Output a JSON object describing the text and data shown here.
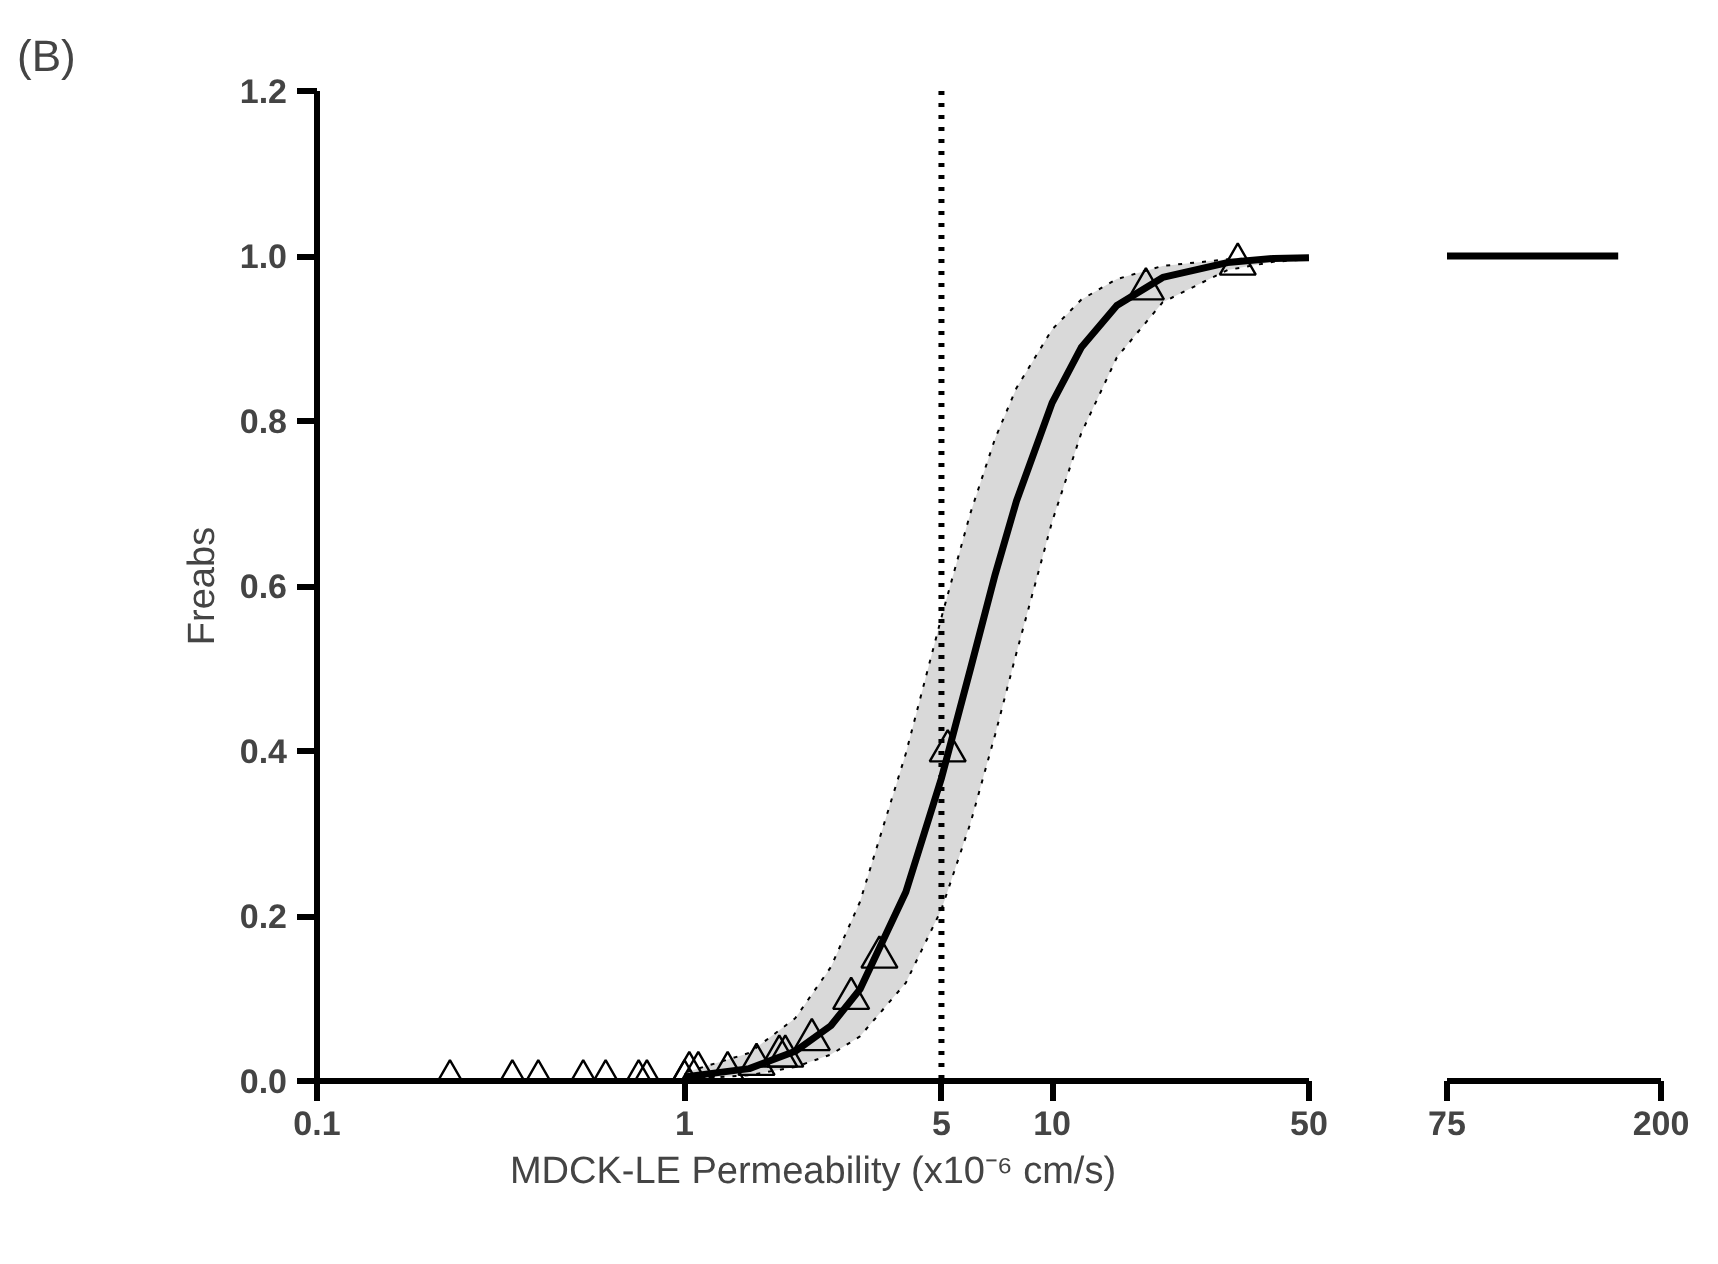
{
  "chart_data": [
    {
      "type": "scatter",
      "title": "(B)",
      "xlabel": "MDCK-LE Permeability (x10⁻⁶ cm/s)",
      "ylabel": "Freabs",
      "log": "x",
      "xlim": [
        0.1,
        50
      ],
      "xticks": [
        0.1,
        1,
        5,
        10,
        50
      ],
      "ylim": [
        0,
        1.2
      ],
      "yticks": [
        {
          "value": 0,
          "label": "0.0"
        },
        {
          "value": 0.2,
          "label": "0.2"
        },
        {
          "value": 0.4,
          "label": "0.4"
        },
        {
          "value": 0.6,
          "label": "0.6"
        },
        {
          "value": 0.8,
          "label": "0.8"
        },
        {
          "value": 1.0,
          "label": "1.0"
        },
        {
          "value": 1.2,
          "label": "1.2"
        }
      ],
      "grid": false,
      "ref_lines": [
        {
          "axis": "x",
          "value": 5,
          "color": "#000000",
          "line_style": "dotted"
        }
      ],
      "series": [
        {
          "type": "line",
          "color": "#000000",
          "line_style": "solid",
          "x": [
            1,
            1.5,
            2,
            2.5,
            3,
            4,
            5,
            6,
            7,
            8,
            10,
            12,
            15,
            20,
            30,
            40,
            50
          ],
          "values": [
            0.005,
            0.015,
            0.036,
            0.067,
            0.111,
            0.229,
            0.367,
            0.5,
            0.614,
            0.703,
            0.822,
            0.889,
            0.94,
            0.974,
            0.992,
            0.997,
            0.998
          ],
          "lower": [
            0.002,
            0.007,
            0.017,
            0.032,
            0.054,
            0.119,
            0.208,
            0.313,
            0.42,
            0.519,
            0.678,
            0.785,
            0.877,
            0.944,
            0.983,
            0.993,
            0.996
          ],
          "upper": [
            0.01,
            0.034,
            0.076,
            0.138,
            0.217,
            0.397,
            0.562,
            0.689,
            0.779,
            0.84,
            0.911,
            0.947,
            0.972,
            0.988,
            0.996,
            0.998,
            0.999
          ]
        },
        {
          "color": "#000000",
          "marker": "triangle",
          "x": [
            0.23,
            0.34,
            0.4,
            0.53,
            0.61,
            0.75,
            0.79,
            1.0,
            1.03,
            1.09,
            1.31,
            1.57,
            1.81,
            1.88,
            2.22,
            2.84,
            3.39,
            5.2,
            18,
            32
          ],
          "values": [
            0,
            0,
            0,
            0,
            0,
            0,
            0,
            0,
            0.01,
            0.01,
            0.01,
            0.02,
            0.03,
            0.03,
            0.05,
            0.1,
            0.15,
            0.4,
            0.96,
            0.99
          ]
        }
      ]
    },
    {
      "type": "line",
      "tick_labels": "x",
      "xlim": [
        75,
        200
      ],
      "xticks": [
        75,
        200
      ],
      "ylim": [
        0,
        1.2
      ],
      "grid": false,
      "series": [
        {
          "color": "#000000",
          "line_style": "solid",
          "x": [
            75,
            175
          ],
          "values": [
            1.0,
            1.0
          ]
        }
      ]
    }
  ]
}
